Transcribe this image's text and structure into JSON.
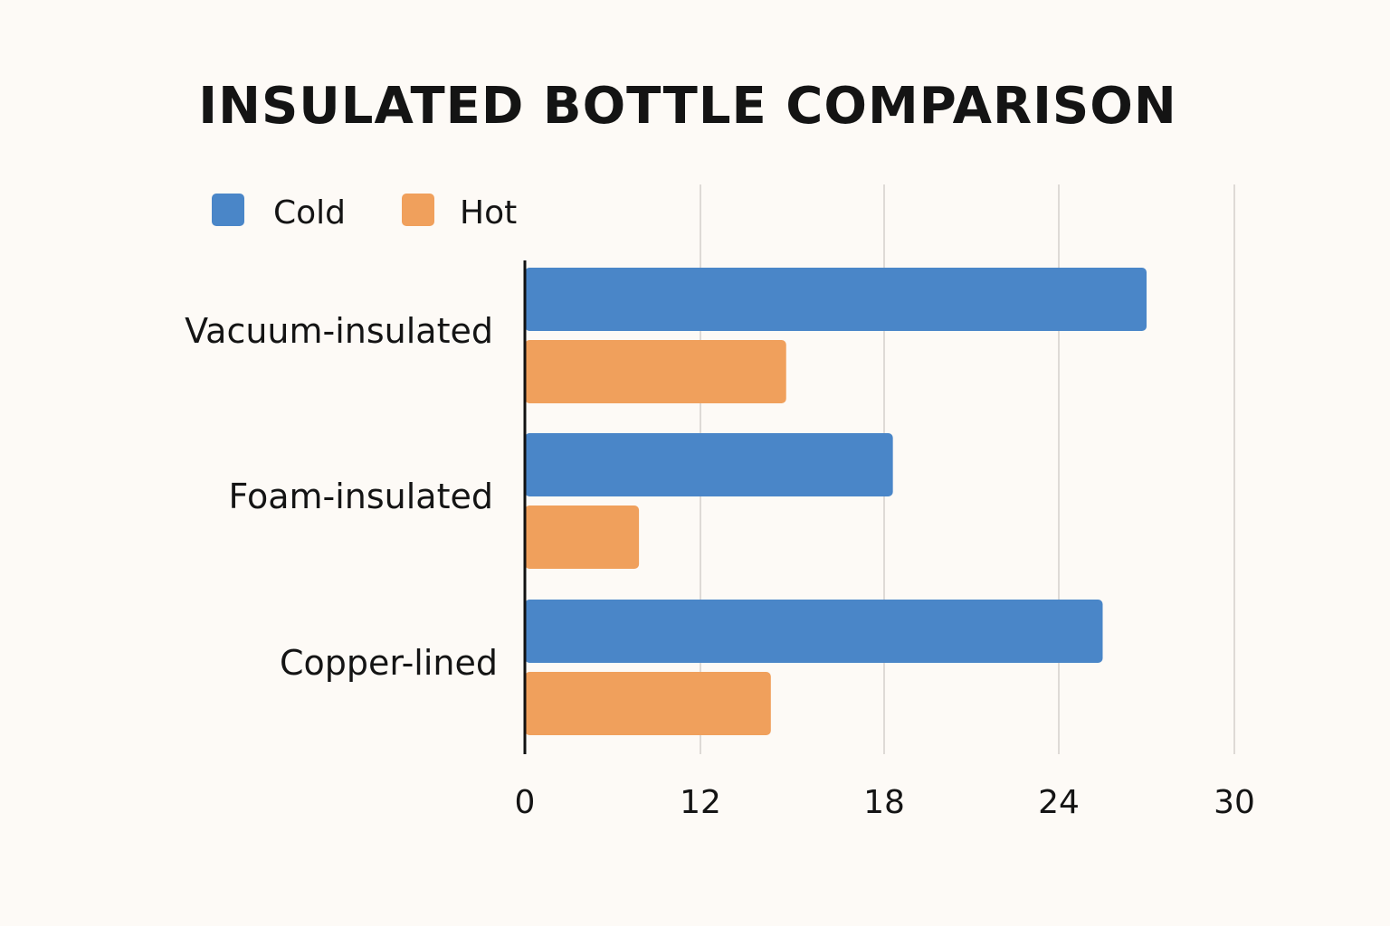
{
  "chart_data": {
    "type": "bar",
    "orientation": "horizontal",
    "title": "INSULATED BOTTLE COMPARISON",
    "categories": [
      "Vacuum-insulated",
      "Foam-insulated",
      "Copper-lined"
    ],
    "series": [
      {
        "name": "Cold",
        "values": [
          27,
          18.3,
          25.5
        ],
        "color": "#4a86c8"
      },
      {
        "name": "Hot",
        "values": [
          14.8,
          7.8,
          14.3
        ],
        "color": "#f0a05c"
      }
    ],
    "x_ticks": [
      "0",
      "12",
      "18",
      "24",
      "30"
    ],
    "xlim": [
      0,
      30
    ],
    "grid": true,
    "legend_position": "top-left"
  }
}
